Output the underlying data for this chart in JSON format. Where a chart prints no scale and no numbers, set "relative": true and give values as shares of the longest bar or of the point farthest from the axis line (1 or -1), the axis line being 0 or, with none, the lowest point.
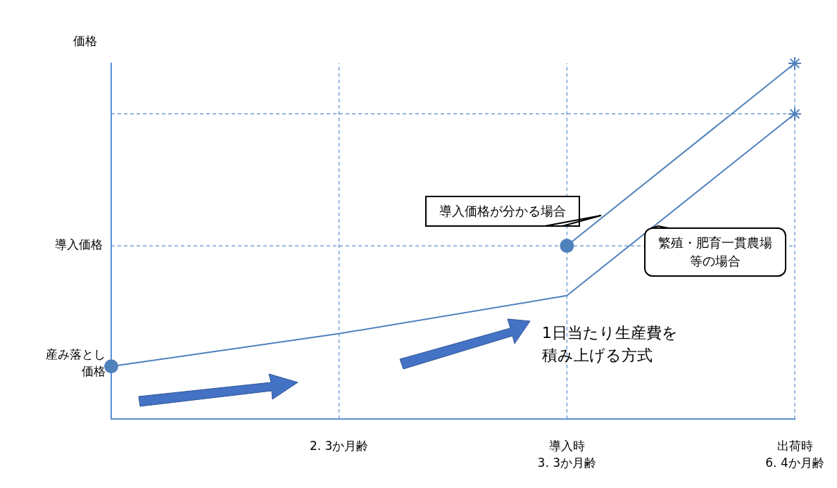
{
  "chart_data": {
    "type": "line",
    "relative": true,
    "ylabel": "価格",
    "categories": [
      null,
      "2. 3か月齢",
      "導入時\n3. 3か月齢",
      "出荷時\n6. 4か月齢"
    ],
    "series": [
      {
        "name": "繁殖・肥育一貫農場等の場合",
        "color": "#4f81bd",
        "values": [
          0.148,
          0.24,
          0.347,
          0.858
        ]
      },
      {
        "name": "導入価格が分かる場合",
        "color": "#4f81bd",
        "values": [
          null,
          null,
          0.487,
          1
        ]
      }
    ],
    "ref_lines": [
      {
        "axis": "y",
        "value": 0.487,
        "label": "導入価格",
        "line_style": "dashed"
      },
      {
        "axis": "y",
        "value": 0.858,
        "line_style": "dashed"
      }
    ],
    "annotations": [
      "産み落とし価格",
      "1日当たり生産費を積み上げる方式"
    ],
    "grid": "x",
    "legend": false,
    "marker": "circle",
    "line_style": "solid"
  }
}
